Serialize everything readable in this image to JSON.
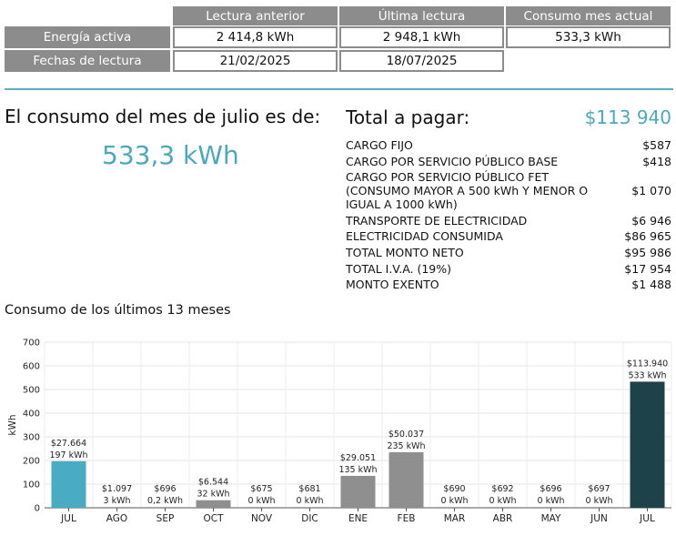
{
  "reading_table": {
    "headers": [
      "Lectura anterior",
      "Última lectura",
      "Consumo mes actual"
    ],
    "rows": [
      {
        "label": "Energía activa",
        "previous": "2 414,8 kWh",
        "latest": "2 948,1 kWh",
        "current": "533,3 kWh"
      },
      {
        "label": "Fechas de lectura",
        "previous": "21/02/2025",
        "latest": "18/07/2025"
      }
    ]
  },
  "summary": {
    "consumption_text": "El consumo del mes de julio es de:",
    "consumption_value": "533,3 kWh",
    "total_label": "Total a pagar:",
    "total_value": "$113 940"
  },
  "charges": [
    {
      "desc": "CARGO FIJO",
      "amount": "$587"
    },
    {
      "desc": "CARGO POR SERVICIO PÚBLICO BASE",
      "amount": "$418"
    },
    {
      "desc": "CARGO POR SERVICIO PÚBLICO FET (CONSUMO MAYOR A 500 kWh Y MENOR O IGUAL A 1000 kWh)",
      "amount": "$1 070"
    },
    {
      "desc": "TRANSPORTE DE ELECTRICIDAD",
      "amount": "$6 946"
    },
    {
      "desc": "ELECTRICIDAD CONSUMIDA",
      "amount": "$86 965"
    },
    {
      "desc": "TOTAL MONTO NETO",
      "amount": "$95 986"
    },
    {
      "desc": "TOTAL I.V.A. (19%)",
      "amount": "$17 954"
    },
    {
      "desc": "MONTO EXENTO",
      "amount": "$1 488"
    }
  ],
  "chart_title": "Consumo de los últimos 13 meses",
  "chart_data": {
    "type": "bar",
    "ylabel": "kWh",
    "ylim": [
      0,
      700
    ],
    "yticks": [
      0,
      100,
      200,
      300,
      400,
      500,
      600,
      700
    ],
    "grid": true,
    "categories": [
      "JUL",
      "AGO",
      "SEP",
      "OCT",
      "NOV",
      "DIC",
      "ENE",
      "FEB",
      "MAR",
      "ABR",
      "MAY",
      "JUN",
      "JUL"
    ],
    "values": [
      197,
      3,
      0.2,
      32,
      0,
      0,
      135,
      235,
      0,
      0,
      0,
      0,
      533
    ],
    "kwh_labels": [
      "197 kWh",
      "3 kWh",
      "0,2 kWh",
      "32 kWh",
      "0 kWh",
      "0 kWh",
      "135 kWh",
      "235 kWh",
      "0 kWh",
      "0 kWh",
      "0 kWh",
      "0 kWh",
      "533 kWh"
    ],
    "amount_labels": [
      "$27.664",
      "$1.097",
      "$696",
      "$6.544",
      "$675",
      "$681",
      "$29.051",
      "$50.037",
      "$690",
      "$692",
      "$696",
      "$697",
      "$113.940"
    ],
    "bar_colors": [
      "#4aacc2",
      "#8f8f8f",
      "#8f8f8f",
      "#8f8f8f",
      "#8f8f8f",
      "#8f8f8f",
      "#8f8f8f",
      "#8f8f8f",
      "#8f8f8f",
      "#8f8f8f",
      "#8f8f8f",
      "#8f8f8f",
      "#1e4249"
    ]
  }
}
